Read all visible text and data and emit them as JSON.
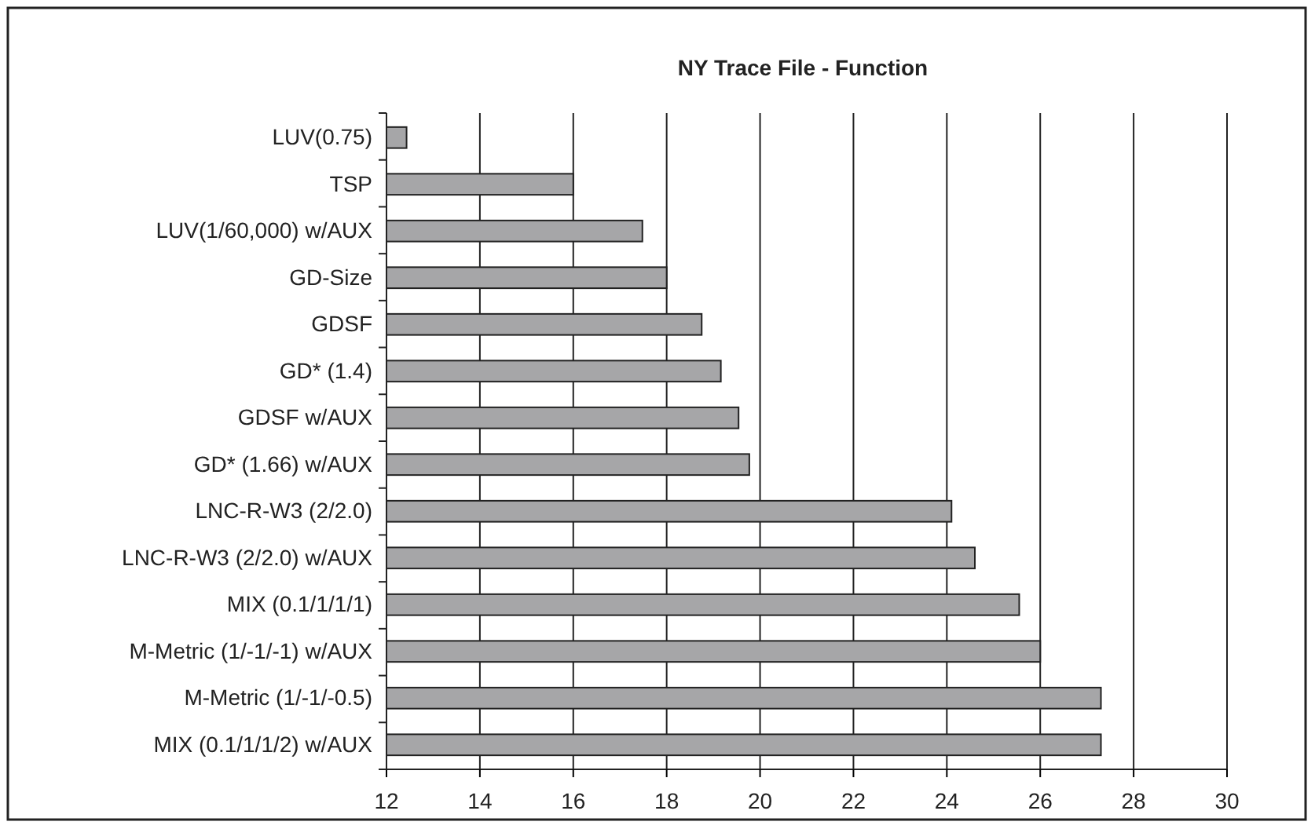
{
  "chart_data": {
    "type": "bar",
    "orientation": "horizontal",
    "title": "NY Trace File - Function",
    "categories": [
      "LUV(0.75)",
      "TSP",
      "LUV(1/60,000) w/AUX",
      "GD-Size",
      "GDSF",
      "GD* (1.4)",
      "GDSF w/AUX",
      "GD* (1.66) w/AUX",
      "LNC-R-W3 (2/2.0)",
      "LNC-R-W3 (2/2.0) w/AUX",
      "MIX (0.1/1/1/1)",
      "M-Metric (1/-1/-1) w/AUX",
      "M-Metric (1/-1/-0.5)",
      "MIX (0.1/1/1/2) w/AUX"
    ],
    "values": [
      12.43,
      16.0,
      17.48,
      18.0,
      18.75,
      19.16,
      19.54,
      19.77,
      24.1,
      24.6,
      25.55,
      26.0,
      27.3,
      27.3
    ],
    "color": "#a6a6a8",
    "xlim": [
      12,
      30
    ],
    "xticks": [
      12,
      14,
      16,
      18,
      20,
      22,
      24,
      26,
      28,
      30
    ],
    "grid": "x"
  }
}
